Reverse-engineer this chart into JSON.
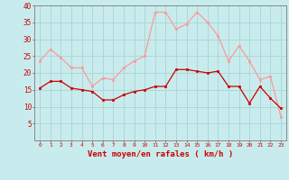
{
  "hours": [
    0,
    1,
    2,
    3,
    4,
    5,
    6,
    7,
    8,
    9,
    10,
    11,
    12,
    13,
    14,
    15,
    16,
    17,
    18,
    19,
    20,
    21,
    22,
    23
  ],
  "mean_wind": [
    15.5,
    17.5,
    17.5,
    15.5,
    15,
    14.5,
    12,
    12,
    13.5,
    14.5,
    15,
    16,
    16,
    21,
    21,
    20.5,
    20,
    20.5,
    16,
    16,
    11,
    16,
    12.5,
    9.5
  ],
  "gust_wind": [
    23.5,
    27,
    24.5,
    21.5,
    21.5,
    16,
    18.5,
    18,
    21.5,
    23.5,
    25,
    38,
    38,
    33,
    34.5,
    38,
    35,
    31,
    23.5,
    28,
    23.5,
    18,
    19,
    7
  ],
  "mean_color": "#cc0000",
  "gust_color": "#ff9999",
  "bg_color": "#c8eced",
  "grid_color": "#aad4d4",
  "xlabel": "Vent moyen/en rafales ( km/h )",
  "xlabel_color": "#cc0000",
  "tick_color": "#cc0000",
  "spine_color": "#888888",
  "ylim": [
    0,
    40
  ],
  "yticks": [
    5,
    10,
    15,
    20,
    25,
    30,
    35,
    40
  ]
}
